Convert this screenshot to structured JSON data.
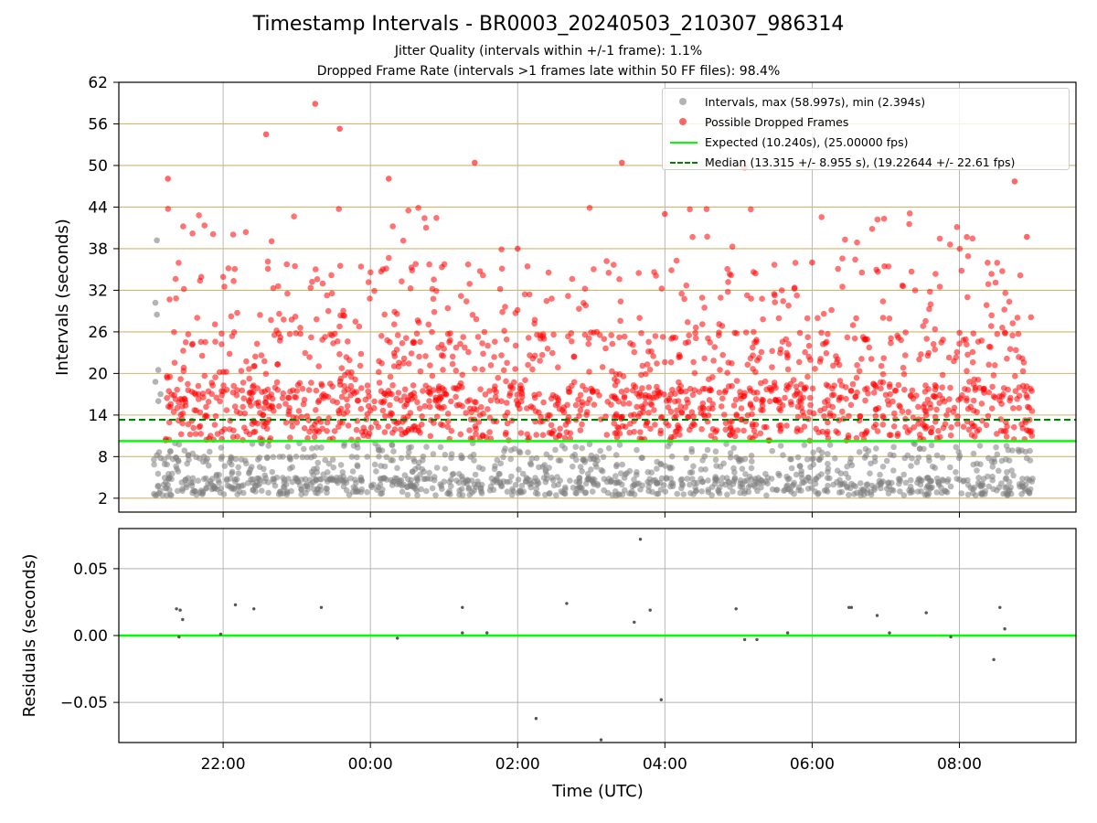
{
  "title": "Timestamp Intervals - BR0003_20240503_210307_986314",
  "subtitle_1": "Jitter Quality (intervals within +/-1 frame): 1.1%",
  "subtitle_2": "Dropped Frame Rate (intervals >1 frames late within 50 FF files): 98.4%",
  "colors": {
    "intervals": "#808080",
    "dropped": "#ff0000",
    "expected": "#00ff00",
    "median": "#008000",
    "hgrid": "#d2b46e",
    "vgrid": "#b0b0b0"
  },
  "legend": {
    "intervals": "Intervals, max (58.997s), min (2.394s)",
    "dropped": "Possible Dropped Frames",
    "expected": "Expected (10.240s), (25.00000 fps)",
    "median": "Median (13.315 +/- 8.955 s), (19.22644 +/- 22.61 fps)"
  },
  "chart_data": [
    {
      "type": "scatter",
      "ylabel": "Intervals (seconds)",
      "xlabel": "",
      "legend_position": "top-right",
      "x_range_hours_utc": [
        "20:35",
        "09:35"
      ],
      "ylim": [
        0,
        62
      ],
      "y_ticks": [
        "2",
        "8",
        "14",
        "20",
        "26",
        "32",
        "38",
        "44",
        "50",
        "56",
        "62"
      ],
      "x_ticks": [
        "22:00",
        "00:00",
        "02:00",
        "04:00",
        "06:00",
        "08:00"
      ],
      "grid": "horizontal at y ticks, vertical at x ticks",
      "expected_interval": 10.24,
      "median_interval": 13.315,
      "max_interval": 58.997,
      "min_interval": 2.394,
      "observation_start": "21:03",
      "observation_end": "09:00",
      "series": [
        {
          "name": "Intervals, max (58.997s), min (2.394s)",
          "description_points": [
            {
              "x": "21:10",
              "y": 39.2
            },
            {
              "x": "21:05",
              "y": 30.2
            },
            {
              "x": "21:06",
              "y": 20.4
            },
            {
              "x": "21:08",
              "y": 16.5
            },
            {
              "x": "21:10",
              "y": 8.2
            },
            {
              "x": "21:05",
              "y": 2.4
            },
            {
              "x": "23:00",
              "y": 4.5
            },
            {
              "x": "01:00",
              "y": 3.8
            },
            {
              "x": "03:00",
              "y": 3.5
            },
            {
              "x": "05:00",
              "y": 3.2
            },
            {
              "x": "07:00",
              "y": 3.6
            },
            {
              "x": "08:55",
              "y": 2.6
            }
          ]
        },
        {
          "name": "Possible Dropped Frames",
          "description_points": [
            {
              "x": "21:15",
              "y": 48.1
            },
            {
              "x": "22:35",
              "y": 54.5
            },
            {
              "x": "23:15",
              "y": 58.9
            },
            {
              "x": "23:35",
              "y": 55.3
            },
            {
              "x": "01:25",
              "y": 50.4
            },
            {
              "x": "03:25",
              "y": 50.4
            },
            {
              "x": "05:05",
              "y": 49.7
            },
            {
              "x": "08:45",
              "y": 47.7
            },
            {
              "x": "00:15",
              "y": 48.1
            },
            {
              "x": "02:00",
              "y": 38.0
            },
            {
              "x": "04:00",
              "y": 43.0
            },
            {
              "x": "06:00",
              "y": 36.0
            },
            {
              "x": "08:55",
              "y": 39.7
            }
          ]
        },
        {
          "name": "Expected (10.240s), (25.00000 fps)",
          "type": "hline",
          "y": 10.24
        },
        {
          "name": "Median (13.315 +/- 8.955 s), (19.22644 +/- 22.61 fps)",
          "type": "hline_dashed",
          "y": 13.315
        }
      ]
    },
    {
      "type": "scatter",
      "ylabel": "Residuals (seconds)",
      "xlabel": "Time (UTC)",
      "ylim": [
        -0.08,
        0.08
      ],
      "y_ticks": [
        "−0.05",
        "0.00",
        "0.05"
      ],
      "x_ticks": [
        "22:00",
        "00:00",
        "02:00",
        "04:00",
        "06:00",
        "08:00"
      ],
      "grid": "both",
      "zero_line": 0.0,
      "points": [
        {
          "x": "21:22",
          "y": 0.02
        },
        {
          "x": "21:25",
          "y": 0.019
        },
        {
          "x": "21:27",
          "y": 0.012
        },
        {
          "x": "21:24",
          "y": -0.001
        },
        {
          "x": "21:58",
          "y": 0.001
        },
        {
          "x": "22:10",
          "y": 0.023
        },
        {
          "x": "22:25",
          "y": 0.02
        },
        {
          "x": "23:20",
          "y": 0.021
        },
        {
          "x": "00:22",
          "y": -0.002
        },
        {
          "x": "01:15",
          "y": 0.021
        },
        {
          "x": "01:15",
          "y": 0.002
        },
        {
          "x": "01:35",
          "y": 0.002
        },
        {
          "x": "02:15",
          "y": -0.062
        },
        {
          "x": "02:40",
          "y": 0.024
        },
        {
          "x": "03:08",
          "y": -0.078
        },
        {
          "x": "03:35",
          "y": 0.01
        },
        {
          "x": "03:40",
          "y": 0.072
        },
        {
          "x": "03:48",
          "y": 0.019
        },
        {
          "x": "03:57",
          "y": -0.048
        },
        {
          "x": "04:58",
          "y": 0.02
        },
        {
          "x": "05:05",
          "y": -0.003
        },
        {
          "x": "05:15",
          "y": -0.003
        },
        {
          "x": "05:40",
          "y": 0.002
        },
        {
          "x": "06:30",
          "y": 0.021
        },
        {
          "x": "06:32",
          "y": 0.021
        },
        {
          "x": "06:53",
          "y": 0.015
        },
        {
          "x": "07:03",
          "y": 0.002
        },
        {
          "x": "07:33",
          "y": 0.017
        },
        {
          "x": "07:53",
          "y": -0.001
        },
        {
          "x": "08:28",
          "y": -0.018
        },
        {
          "x": "08:33",
          "y": 0.021
        },
        {
          "x": "08:37",
          "y": 0.005
        }
      ]
    }
  ]
}
